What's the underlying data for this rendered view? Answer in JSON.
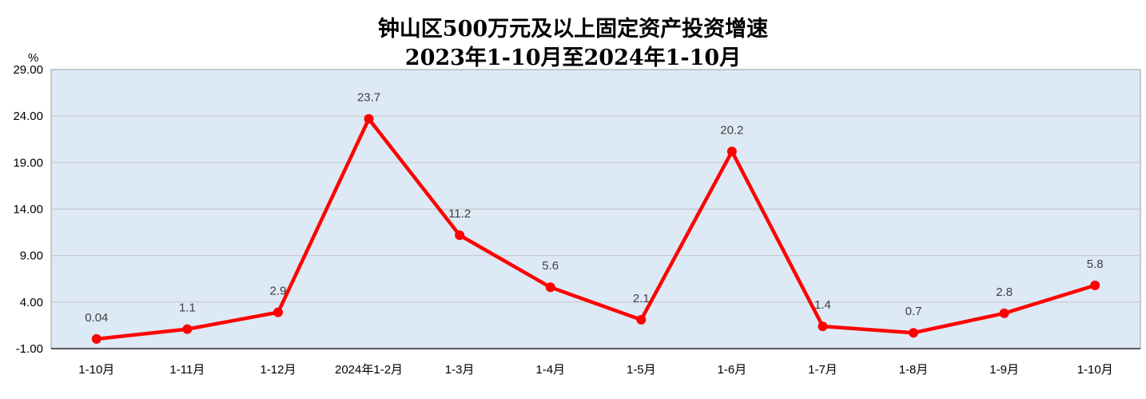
{
  "chart_data": {
    "type": "line",
    "title": "钟山区500万元及以上固定资产投资增速",
    "subtitle": "2023年1-10月至2024年1-10月",
    "unit_label": "%",
    "categories": [
      "1-10月",
      "1-11月",
      "1-12月",
      "2024年1-2月",
      "1-3月",
      "1-4月",
      "1-5月",
      "1-6月",
      "1-7月",
      "1-8月",
      "1-9月",
      "1-10月"
    ],
    "series": [
      {
        "values": [
          0.04,
          1.1,
          2.9,
          23.7,
          11.2,
          5.6,
          2.1,
          20.2,
          1.4,
          0.7,
          2.8,
          5.8
        ],
        "labels": [
          "0.04",
          "1.1",
          "2.9",
          "23.7",
          "11.2",
          "5.6",
          "2.1",
          "20.2",
          "1.4",
          "0.7",
          "2.8",
          "5.8"
        ],
        "color": "#ff0000"
      }
    ],
    "y_ticks": [
      "29.00",
      "24.00",
      "19.00",
      "14.00",
      "9.00",
      "4.00",
      "-1.00"
    ],
    "ylim": [
      -1,
      29
    ],
    "grid": true,
    "plot_background": "#dde9f5",
    "grid_color": "#c8c8c8"
  }
}
